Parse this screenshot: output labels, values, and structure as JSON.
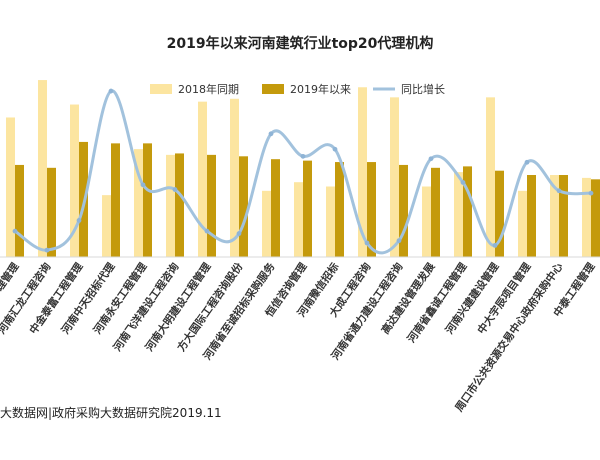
{
  "chart_data": {
    "type": "bar",
    "title": "2019年以来河南建筑行业top20代理机构",
    "categories": [
      "理管理",
      "河南汇龙工程咨询",
      "中金泰富工程管理",
      "河南中天招标代理",
      "河南永安工程管理",
      "河南飞洋建设工程咨询",
      "河南大明建设工程管理",
      "方大国际工程咨询股份",
      "河南省至诚招标采购服务",
      "恒信咨询管理",
      "河南豫信招标",
      "大成工程咨询",
      "河南省通力建设工程咨询",
      "高达建设管理发展",
      "河南省鑫诚工程管理",
      "河南兴建建设管理",
      "中大宇辰项目管理",
      "周口市公共资源交易中心政府采购中心",
      "中泰工程管理"
    ],
    "series": [
      {
        "name": "2018年同期",
        "kind": "bar",
        "color": "#fce5a0",
        "values": [
          97,
          123,
          106,
          43,
          75,
          71,
          108,
          110,
          46,
          52,
          49,
          118,
          111,
          49,
          59,
          111,
          46,
          57,
          55
        ]
      },
      {
        "name": "2019年以来",
        "kind": "bar",
        "color": "#c49a0c",
        "values": [
          64,
          62,
          80,
          79,
          79,
          72,
          71,
          70,
          68,
          67,
          66,
          66,
          64,
          62,
          63,
          60,
          57,
          57,
          54
        ]
      },
      {
        "name": "同比增长",
        "kind": "line",
        "color": "#a2c2dd",
        "values": [
          -34,
          -50,
          -25,
          84,
          5,
          1,
          -34,
          -36,
          48,
          29,
          35,
          -44,
          -42,
          27,
          7,
          -46,
          24,
          0,
          -2
        ]
      }
    ],
    "legend_position": "top",
    "bar_ylim": [
      0,
      130
    ],
    "line_ylim": [
      -60,
      95
    ],
    "grid": false,
    "source": "大数据网|政府采购大数据研究院2019.11"
  }
}
